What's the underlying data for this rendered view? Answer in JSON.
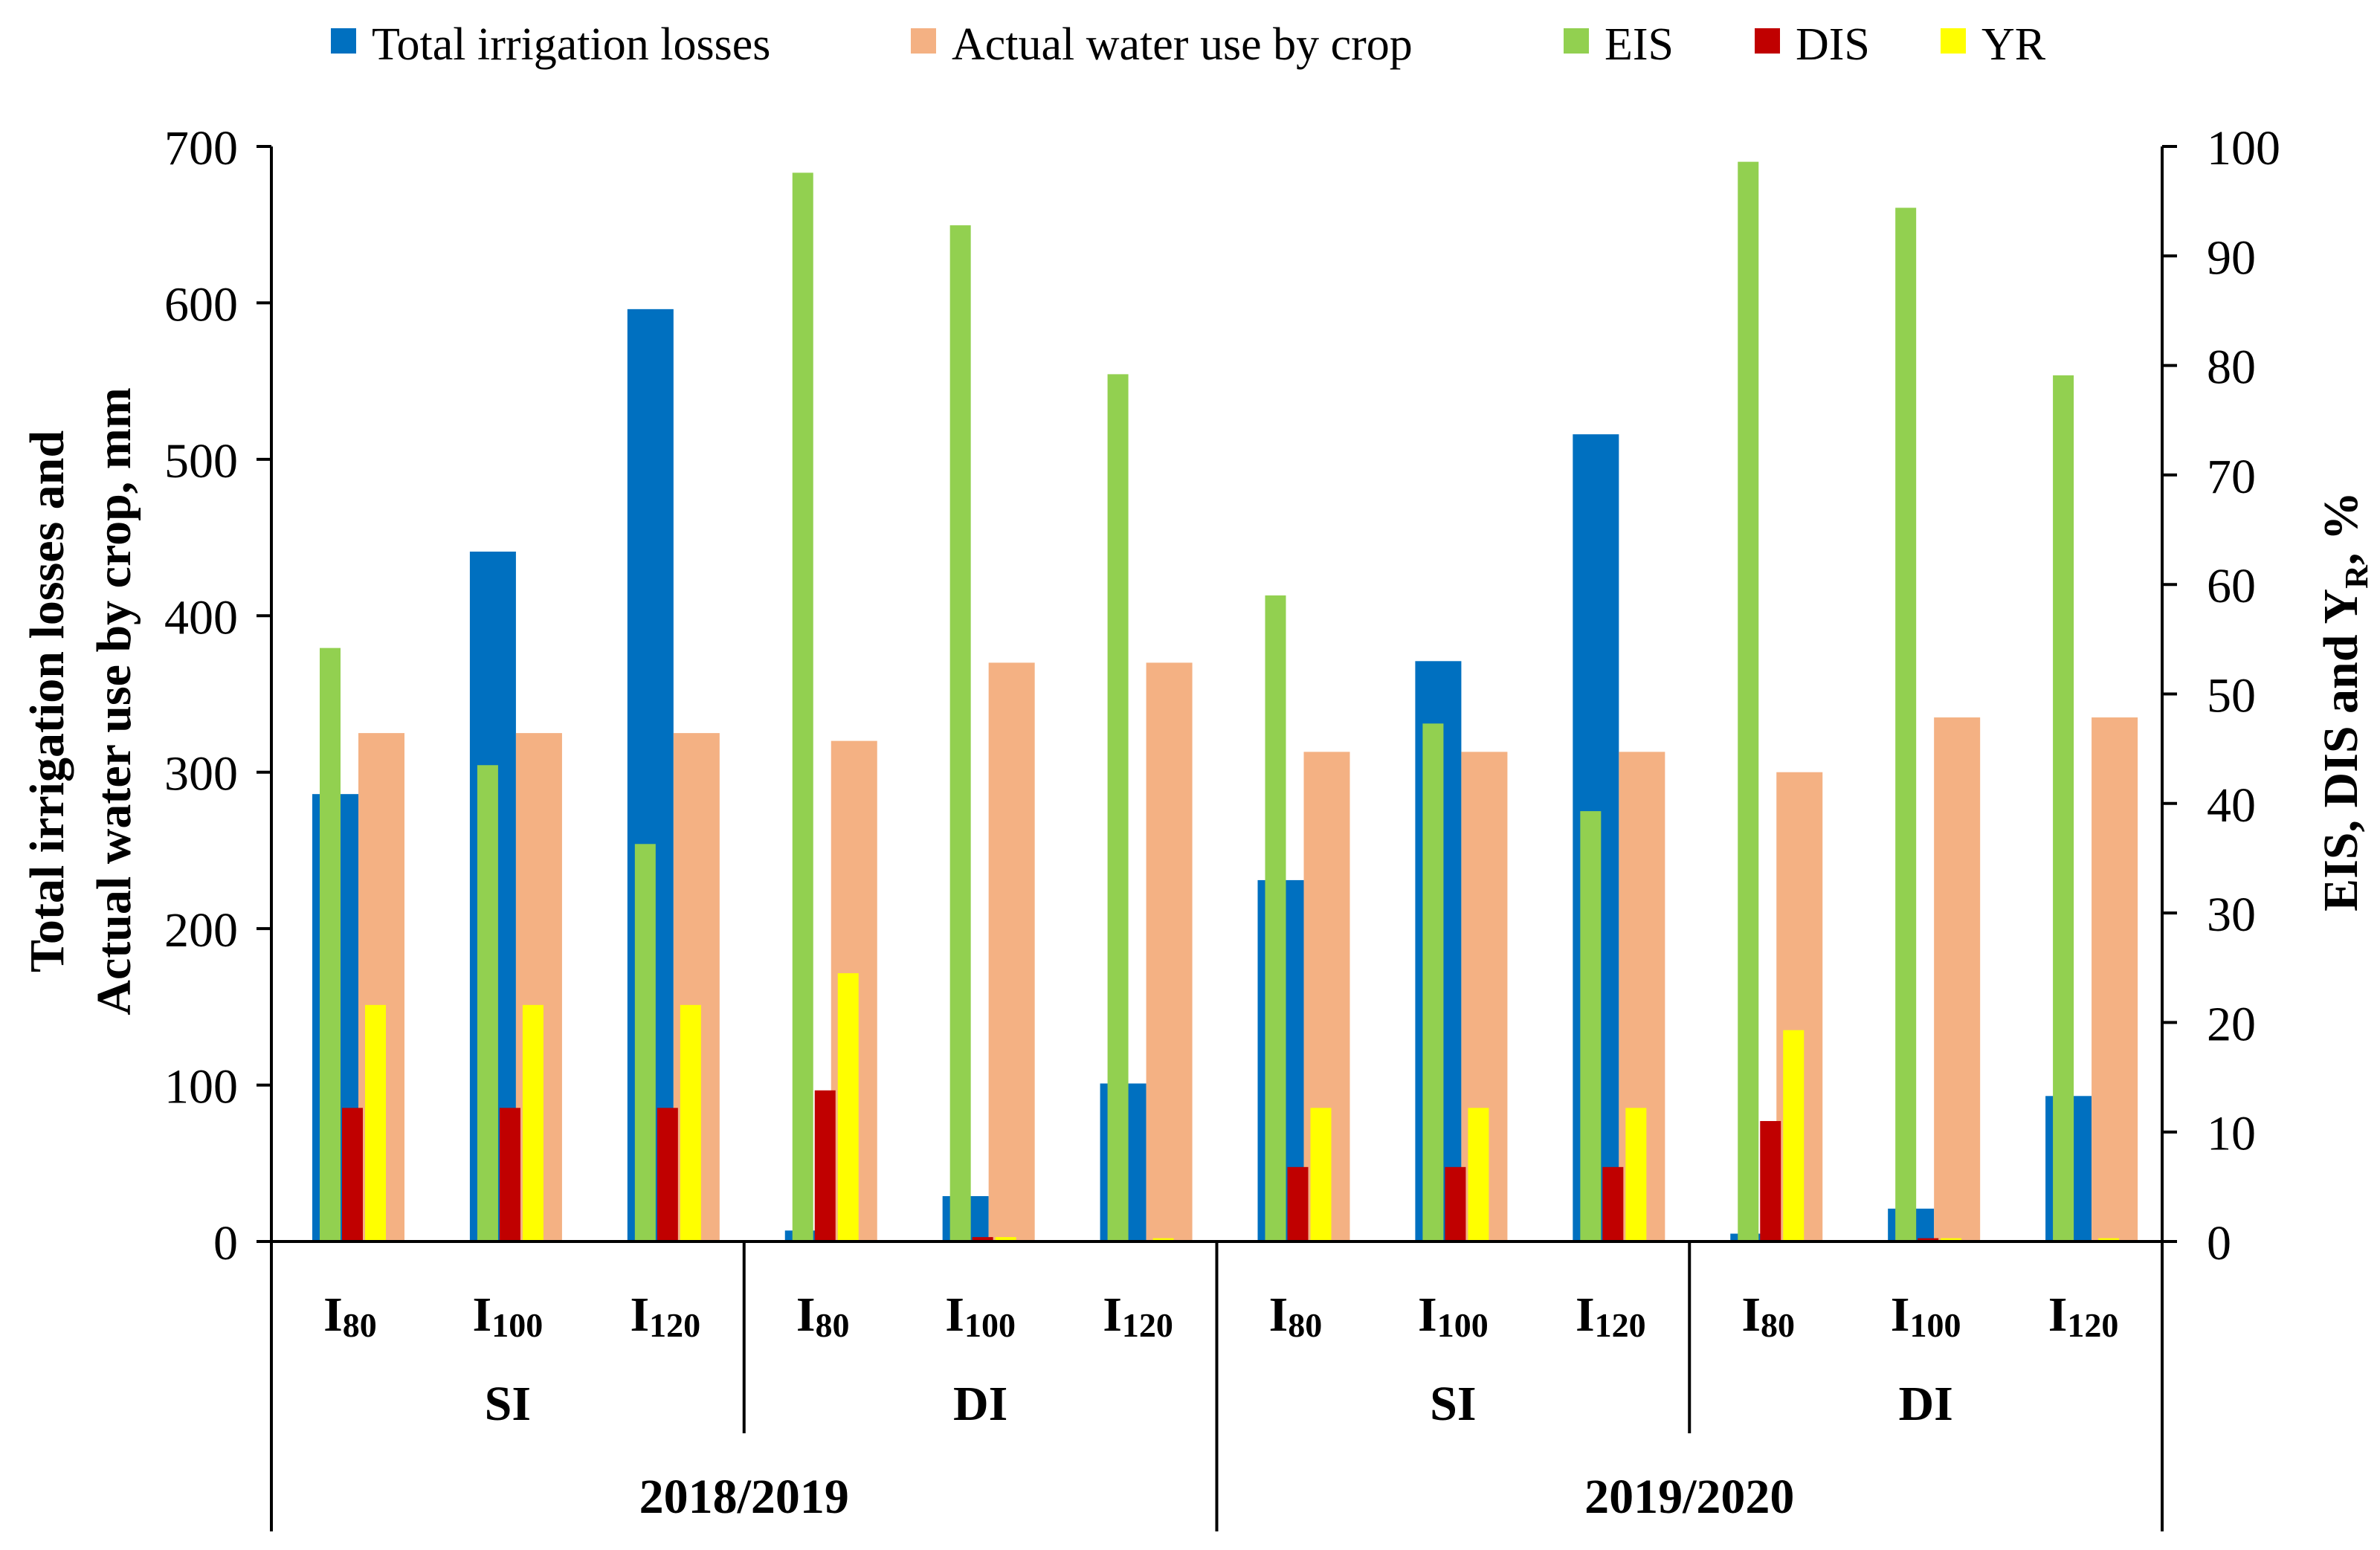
{
  "chart_data": {
    "type": "bar",
    "legend": {
      "placement": "top",
      "entries": [
        {
          "key": "losses",
          "label": "Total irrigation losses",
          "color": "#0070C0"
        },
        {
          "key": "water_use",
          "label": "Actual water use by crop",
          "color": "#F4B183"
        },
        {
          "key": "eis",
          "label": "EIS",
          "color": "#92D050"
        },
        {
          "key": "dis",
          "label": "DIS",
          "color": "#C00000"
        },
        {
          "key": "yr",
          "label": "YR",
          "color": "#FFFF00"
        }
      ]
    },
    "y_left": {
      "label_line1": "Total irrigation losses and",
      "label_line2": "Actual water use by crop, mm",
      "min": 0,
      "max": 700,
      "step": 100,
      "ticks": [
        "0",
        "100",
        "200",
        "300",
        "400",
        "500",
        "600",
        "700"
      ]
    },
    "y_right": {
      "label_main": "EIS, DIS and Y",
      "label_sub": "R",
      "label_end": ", %",
      "min": 0,
      "max": 100,
      "step": 10,
      "ticks": [
        "0",
        "10",
        "20",
        "30",
        "40",
        "50",
        "60",
        "70",
        "80",
        "90",
        "100"
      ]
    },
    "x_axis": {
      "levels": [
        {
          "prefix": "I",
          "sub": "80"
        },
        {
          "prefix": "I",
          "sub": "100"
        },
        {
          "prefix": "I",
          "sub": "120"
        },
        {
          "prefix": "I",
          "sub": "80"
        },
        {
          "prefix": "I",
          "sub": "100"
        },
        {
          "prefix": "I",
          "sub": "120"
        },
        {
          "prefix": "I",
          "sub": "80"
        },
        {
          "prefix": "I",
          "sub": "100"
        },
        {
          "prefix": "I",
          "sub": "120"
        },
        {
          "prefix": "I",
          "sub": "80"
        },
        {
          "prefix": "I",
          "sub": "100"
        },
        {
          "prefix": "I",
          "sub": "120"
        }
      ],
      "methods": [
        "SI",
        "DI",
        "SI",
        "DI"
      ],
      "seasons": [
        "2018/2019",
        "2019/2020"
      ]
    },
    "series": [
      {
        "key": "losses",
        "name": "Total irrigation losses",
        "axis": "left",
        "values": [
          286,
          441,
          596,
          7,
          29,
          101,
          231,
          371,
          516,
          5,
          21,
          93
        ]
      },
      {
        "key": "water_use",
        "name": "Actual water use by crop",
        "axis": "left",
        "values": [
          325,
          325,
          325,
          320,
          370,
          370,
          313,
          313,
          313,
          300,
          335,
          335
        ]
      },
      {
        "key": "eis",
        "name": "EIS",
        "axis": "right",
        "values": [
          54.2,
          43.5,
          36.3,
          97.6,
          92.8,
          79.2,
          59.0,
          47.3,
          39.3,
          98.6,
          94.4,
          79.1
        ]
      },
      {
        "key": "dis",
        "name": "DIS",
        "axis": "right",
        "values": [
          12.2,
          12.2,
          12.2,
          13.8,
          0.4,
          0.0,
          6.8,
          6.8,
          6.8,
          11.0,
          0.3,
          0.0
        ]
      },
      {
        "key": "yr",
        "name": "YR",
        "axis": "right",
        "values": [
          21.6,
          21.6,
          21.6,
          24.5,
          0.4,
          0.3,
          12.2,
          12.2,
          12.2,
          19.3,
          0.3,
          0.3
        ]
      }
    ]
  }
}
